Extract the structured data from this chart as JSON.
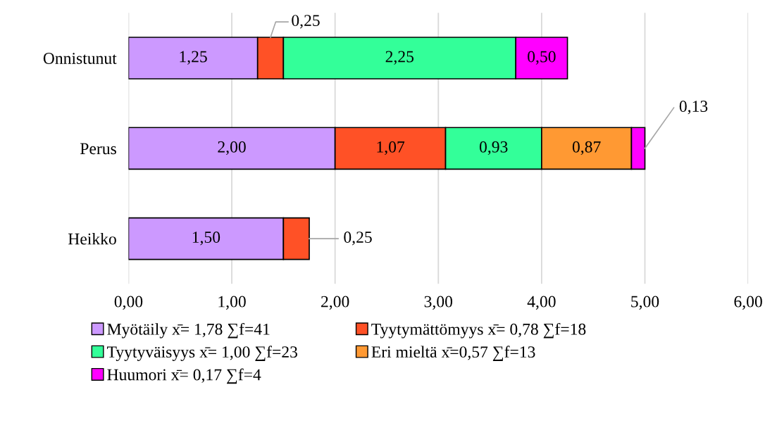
{
  "chart_data": {
    "type": "bar",
    "orientation": "horizontal",
    "stacked": true,
    "categories": [
      "Onnistunut",
      "Perus",
      "Heikko"
    ],
    "series": [
      {
        "name": "Myötäily x̄= 1,78 ∑f=41",
        "color": "#cc99ff",
        "values": [
          1.25,
          2.0,
          1.5
        ],
        "value_labels": [
          "1,25",
          "2,00",
          "1,50"
        ]
      },
      {
        "name": "Tyytymättömyys x̄= 0,78 ∑f=18",
        "color": "#ff5126",
        "values": [
          0.25,
          1.07,
          0.25
        ],
        "value_labels": [
          "0,25",
          "1,07",
          "0,25"
        ]
      },
      {
        "name": "Tyytyväisyys x̄= 1,00 ∑f=23",
        "color": "#33ff99",
        "values": [
          2.25,
          0.93,
          null
        ],
        "value_labels": [
          "2,25",
          "0,93",
          null
        ]
      },
      {
        "name": "Eri mieltä x̄=0,57 ∑f=13",
        "color": "#ff9933",
        "values": [
          null,
          0.87,
          null
        ],
        "value_labels": [
          null,
          "0,87",
          null
        ]
      },
      {
        "name": "Huumori x̄= 0,17 ∑f=4",
        "color": "#ff00ff",
        "values": [
          0.5,
          0.13,
          null
        ],
        "value_labels": [
          "0,50",
          "0,13",
          null
        ]
      }
    ],
    "xlim": [
      0,
      6
    ],
    "xticks": [
      {
        "value": 0,
        "label": "0,00"
      },
      {
        "value": 1,
        "label": "1,00"
      },
      {
        "value": 2,
        "label": "2,00"
      },
      {
        "value": 3,
        "label": "3,00"
      },
      {
        "value": 4,
        "label": "4,00"
      },
      {
        "value": 5,
        "label": "5,00"
      },
      {
        "value": 6,
        "label": "6,00"
      }
    ],
    "grid": "x",
    "legend": "bottom"
  }
}
